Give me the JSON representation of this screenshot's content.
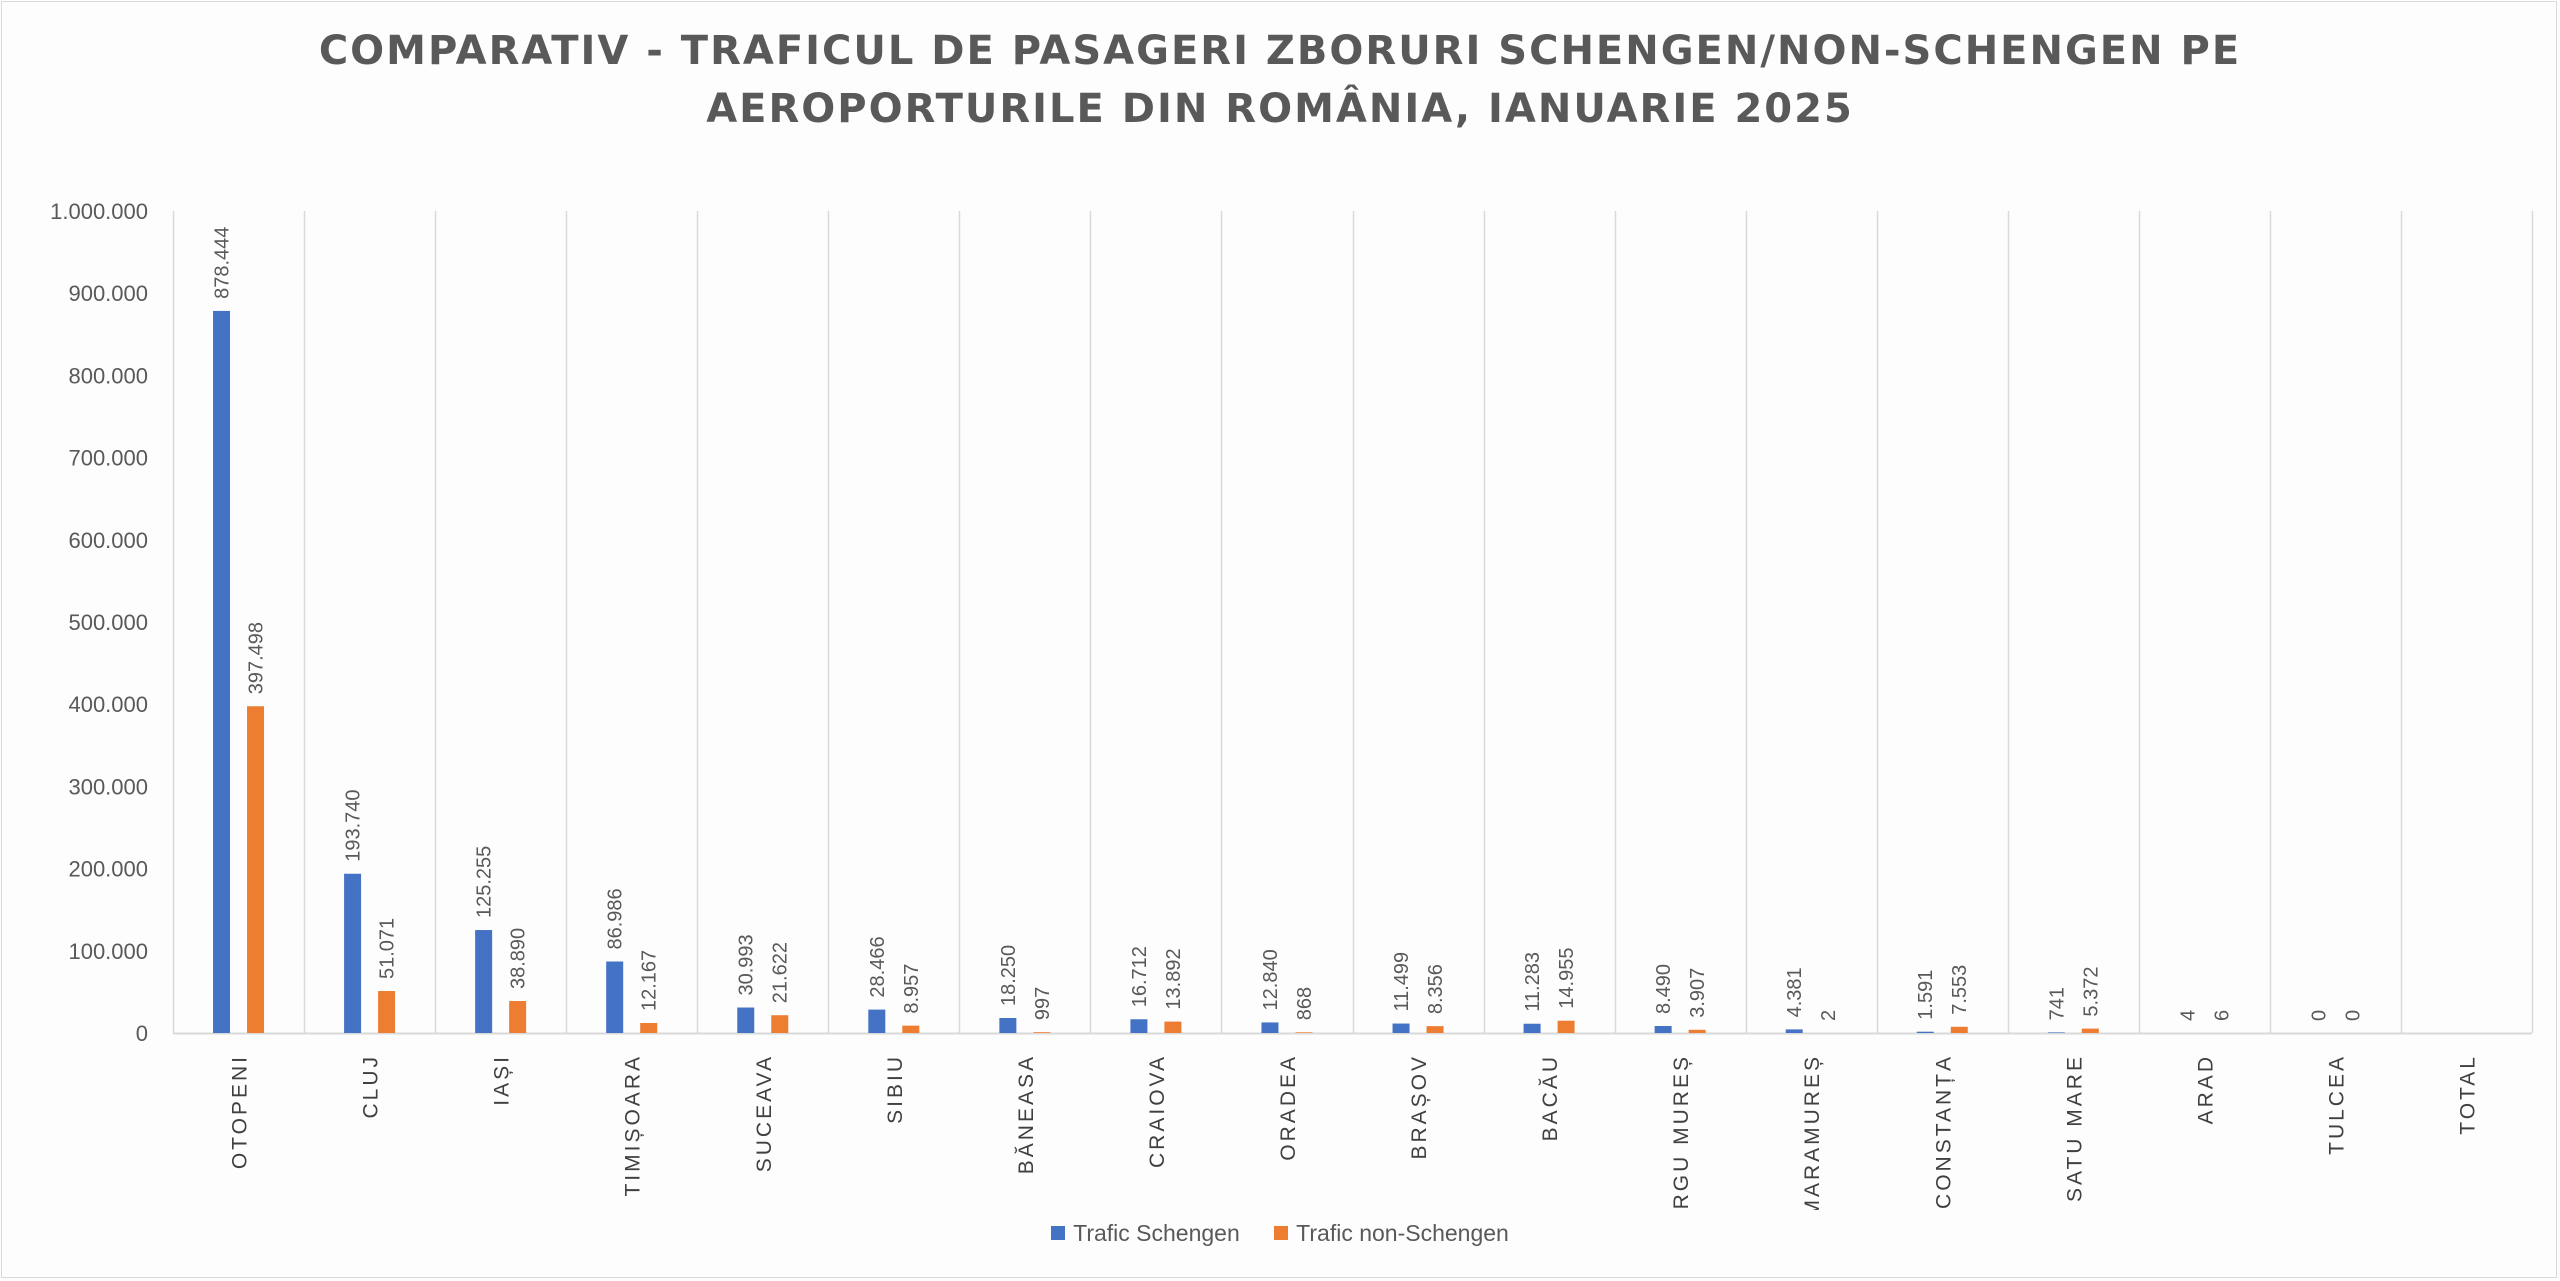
{
  "chart_data": {
    "type": "bar",
    "title_lines": [
      "COMPARATIV - TRAFICUL DE PASAGERI ZBORURI SCHENGEN/NON-SCHENGEN PE",
      "AEROPORTURILE DIN ROMÂNIA, IANUARIE 2025"
    ],
    "categories": [
      "OTOPENI",
      "CLUJ",
      "IAȘI",
      "TIMIȘOARA",
      "SUCEAVA",
      "SIBIU",
      "BĂNEASA",
      "CRAIOVA",
      "ORADEA",
      "BRAȘOV",
      "BACĂU",
      "TÂRGU MUREȘ",
      "MARAMUREȘ",
      "CONSTANȚA",
      "SATU MARE",
      "ARAD",
      "TULCEA",
      "TOTAL"
    ],
    "series": [
      {
        "name": "Trafic Schengen",
        "color": "#4472c4",
        "values": [
          878444,
          193740,
          125255,
          86986,
          30993,
          28466,
          18250,
          16712,
          12840,
          11499,
          11283,
          8490,
          4381,
          1591,
          741,
          4,
          0,
          null
        ],
        "labels": [
          "878.444",
          "193.740",
          "125.255",
          "86.986",
          "30.993",
          "28.466",
          "18.250",
          "16.712",
          "12.840",
          "11.499",
          "11.283",
          "8.490",
          "4.381",
          "1.591",
          "741",
          "4",
          "0",
          ""
        ]
      },
      {
        "name": "Trafic non-Schengen",
        "color": "#ed7d31",
        "values": [
          397498,
          51071,
          38890,
          12167,
          21622,
          8957,
          997,
          13892,
          868,
          8356,
          14955,
          3907,
          2,
          7553,
          5372,
          6,
          0,
          null
        ],
        "labels": [
          "397.498",
          "51.071",
          "38.890",
          "12.167",
          "21.622",
          "8.957",
          "997",
          "13.892",
          "868",
          "8.356",
          "14.955",
          "3.907",
          "2",
          "7.553",
          "5.372",
          "6",
          "0",
          ""
        ]
      }
    ],
    "ylim": [
      0,
      1000000
    ],
    "yticks": [
      0,
      100000,
      200000,
      300000,
      400000,
      500000,
      600000,
      700000,
      800000,
      900000,
      1000000
    ],
    "ytick_labels": [
      "0",
      "100.000",
      "200.000",
      "300.000",
      "400.000",
      "500.000",
      "600.000",
      "700.000",
      "800.000",
      "900.000",
      "1.000.000"
    ],
    "grid": "vertical",
    "legend_position": "bottom"
  },
  "legend": {
    "schengen": "Trafic Schengen",
    "non_schengen": "Trafic non-Schengen"
  }
}
